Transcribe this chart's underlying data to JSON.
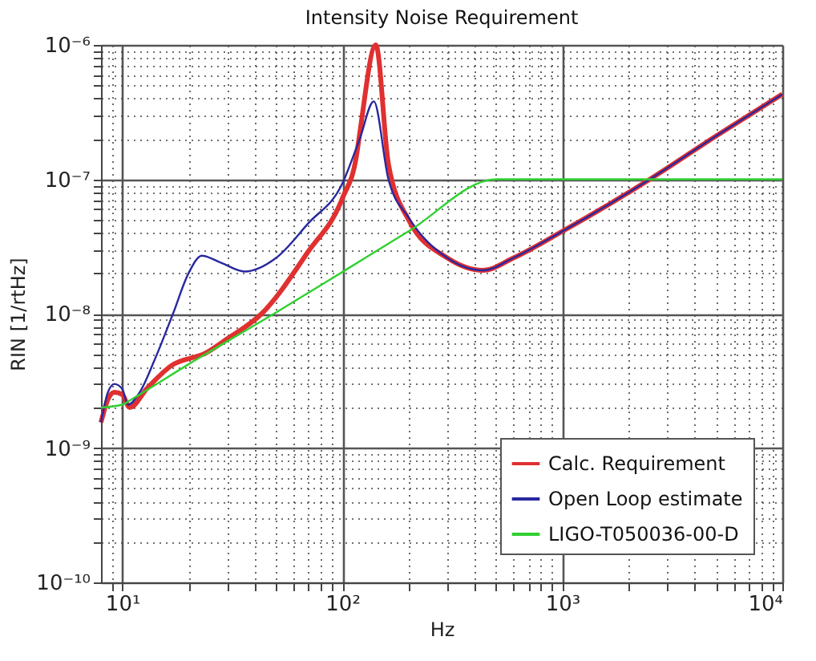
{
  "chart_data": {
    "type": "line",
    "title": "Intensity Noise Requirement",
    "xlabel": "Hz",
    "ylabel": "RIN [1/rtHz]",
    "log": "xy",
    "grid": true,
    "legend": "bottom right",
    "line_style": "solid",
    "marker": "none",
    "xlim": [
      8,
      10000
    ],
    "ylim": [
      1e-10,
      1e-06
    ],
    "xticks": [
      {
        "value": 9,
        "label": null
      },
      {
        "value": 10,
        "label": "10¹"
      },
      {
        "value": 20,
        "label": null
      },
      {
        "value": 30,
        "label": null
      },
      {
        "value": 40,
        "label": null
      },
      {
        "value": 50,
        "label": null
      },
      {
        "value": 60,
        "label": null
      },
      {
        "value": 70,
        "label": null
      },
      {
        "value": 80,
        "label": null
      },
      {
        "value": 90,
        "label": null
      },
      {
        "value": 100,
        "label": "10²"
      },
      {
        "value": 200,
        "label": null
      },
      {
        "value": 300,
        "label": null
      },
      {
        "value": 400,
        "label": null
      },
      {
        "value": 500,
        "label": null
      },
      {
        "value": 600,
        "label": null
      },
      {
        "value": 700,
        "label": null
      },
      {
        "value": 800,
        "label": null
      },
      {
        "value": 900,
        "label": null
      },
      {
        "value": 1000,
        "label": "10³"
      },
      {
        "value": 2000,
        "label": null
      },
      {
        "value": 3000,
        "label": null
      },
      {
        "value": 4000,
        "label": null
      },
      {
        "value": 5000,
        "label": null
      },
      {
        "value": 6000,
        "label": null
      },
      {
        "value": 7000,
        "label": null
      },
      {
        "value": 8000,
        "label": null
      },
      {
        "value": 9000,
        "label": null
      },
      {
        "value": 10000,
        "label": "10⁴"
      }
    ],
    "yticks": [
      {
        "value": 1e-10,
        "label": "10⁻¹⁰"
      },
      {
        "value": 2e-10,
        "label": null
      },
      {
        "value": 3e-10,
        "label": null
      },
      {
        "value": 4e-10,
        "label": null
      },
      {
        "value": 5e-10,
        "label": null
      },
      {
        "value": 6e-10,
        "label": null
      },
      {
        "value": 7e-10,
        "label": null
      },
      {
        "value": 8e-10,
        "label": null
      },
      {
        "value": 9e-10,
        "label": null
      },
      {
        "value": 1e-09,
        "label": "10⁻⁹"
      },
      {
        "value": 2e-09,
        "label": null
      },
      {
        "value": 3e-09,
        "label": null
      },
      {
        "value": 4e-09,
        "label": null
      },
      {
        "value": 5e-09,
        "label": null
      },
      {
        "value": 6e-09,
        "label": null
      },
      {
        "value": 7e-09,
        "label": null
      },
      {
        "value": 8e-09,
        "label": null
      },
      {
        "value": 9e-09,
        "label": null
      },
      {
        "value": 1e-08,
        "label": "10⁻⁸"
      },
      {
        "value": 2e-08,
        "label": null
      },
      {
        "value": 3e-08,
        "label": null
      },
      {
        "value": 4e-08,
        "label": null
      },
      {
        "value": 5e-08,
        "label": null
      },
      {
        "value": 6e-08,
        "label": null
      },
      {
        "value": 7e-08,
        "label": null
      },
      {
        "value": 8e-08,
        "label": null
      },
      {
        "value": 9e-08,
        "label": null
      },
      {
        "value": 1e-07,
        "label": "10⁻⁷"
      },
      {
        "value": 2e-07,
        "label": null
      },
      {
        "value": 3e-07,
        "label": null
      },
      {
        "value": 4e-07,
        "label": null
      },
      {
        "value": 5e-07,
        "label": null
      },
      {
        "value": 6e-07,
        "label": null
      },
      {
        "value": 7e-07,
        "label": null
      },
      {
        "value": 8e-07,
        "label": null
      },
      {
        "value": 9e-07,
        "label": null
      },
      {
        "value": 1e-06,
        "label": "10⁻⁶"
      }
    ],
    "series": [
      {
        "name": "Calc. Requirement",
        "color": "#e03030",
        "x": [
          8,
          8.6,
          9.2,
          10,
          10.8,
          13,
          16.7,
          24,
          30,
          43,
          70,
          100,
          116,
          120,
          142,
          162,
          200,
          300,
          436,
          600,
          1000,
          2500,
          5000,
          10000
        ],
        "values": [
          1.55e-09,
          2.3e-09,
          2.6e-09,
          2.5e-09,
          2e-09,
          2.8e-09,
          4.1e-09,
          5.1e-09,
          6.5e-09,
          1e-08,
          2.9e-08,
          7.2e-08,
          1.5e-07,
          2.2e-07,
          1e-06,
          1.3e-07,
          5e-08,
          2.6e-08,
          2.1e-08,
          2.6e-08,
          4.1e-08,
          1e-07,
          2.1e-07,
          4.3e-07
        ]
      },
      {
        "name": "Open Loop estimate",
        "color": "#2828a0",
        "x": [
          8,
          8.6,
          9.2,
          10,
          10.6,
          12,
          14,
          17,
          20,
          23,
          28,
          36,
          50,
          70,
          100,
          120,
          139,
          162,
          200,
          300,
          436,
          600,
          1000,
          2500,
          5000,
          10000
        ],
        "values": [
          1.55e-09,
          2.6e-09,
          3e-09,
          2.75e-09,
          2.1e-09,
          2.6e-09,
          4.5e-09,
          1e-08,
          2e-08,
          2.7e-08,
          2.4e-08,
          2.06e-08,
          2.6e-08,
          4.7e-08,
          9.3e-08,
          2e-07,
          3.8e-07,
          1e-07,
          5.2e-08,
          2.6e-08,
          2.1e-08,
          2.6e-08,
          4.1e-08,
          1e-07,
          2.1e-07,
          4.3e-07
        ]
      },
      {
        "name": "LIGO-T050036-00-D",
        "color": "#30d030",
        "x": [
          8,
          10,
          11,
          20,
          50,
          100,
          200,
          500,
          10000
        ],
        "values": [
          2e-09,
          2.1e-09,
          2.3e-09,
          4.2e-09,
          1.02e-08,
          2.04e-08,
          4.1e-08,
          1e-07,
          1e-07
        ]
      }
    ]
  }
}
